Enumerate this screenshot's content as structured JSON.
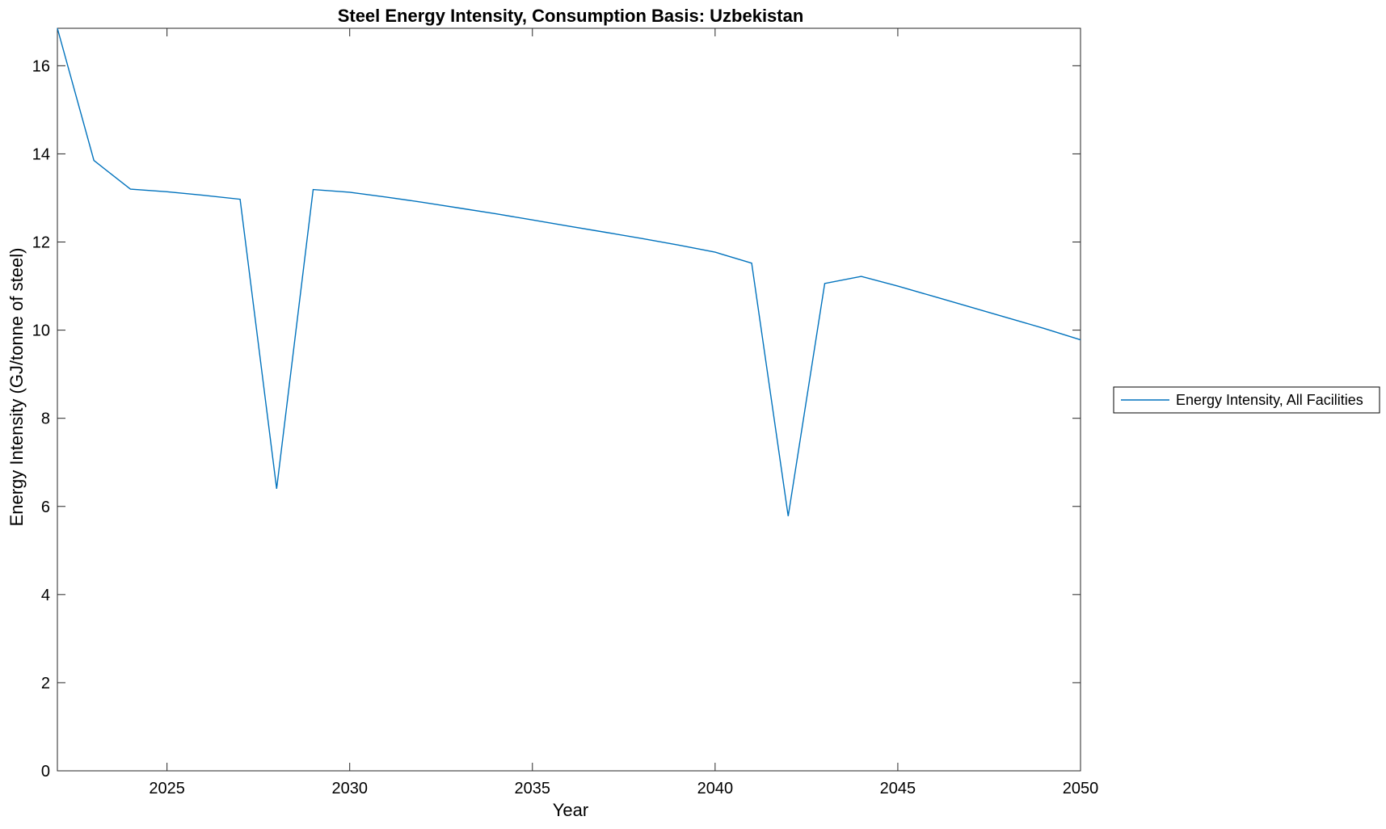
{
  "chart_data": {
    "type": "line",
    "title": "Steel Energy Intensity, Consumption Basis: Uzbekistan",
    "xlabel": "Year",
    "ylabel": "Energy Intensity (GJ/tonne of steel)",
    "xlim": [
      2022,
      2050
    ],
    "ylim": [
      0,
      16.85
    ],
    "xticks": [
      2025,
      2030,
      2035,
      2040,
      2045,
      2050
    ],
    "yticks": [
      0,
      2,
      4,
      6,
      8,
      10,
      12,
      14,
      16
    ],
    "grid": false,
    "legend_position": "outside-right",
    "series": [
      {
        "name": "Energy Intensity, All Facilities",
        "color": "#0072BD",
        "x": [
          2022,
          2023,
          2024,
          2025,
          2026,
          2027,
          2028,
          2029,
          2030,
          2031,
          2032,
          2033,
          2034,
          2035,
          2036,
          2037,
          2038,
          2039,
          2040,
          2041,
          2042,
          2043,
          2044,
          2045,
          2046,
          2047,
          2048,
          2049,
          2050
        ],
        "y": [
          16.85,
          13.85,
          13.2,
          13.14,
          13.06,
          12.97,
          6.4,
          13.19,
          13.13,
          13.02,
          12.9,
          12.77,
          12.64,
          12.5,
          12.36,
          12.22,
          12.08,
          11.93,
          11.77,
          11.52,
          5.78,
          11.06,
          11.22,
          11.0,
          10.76,
          10.52,
          10.28,
          10.04,
          9.78
        ]
      }
    ]
  }
}
